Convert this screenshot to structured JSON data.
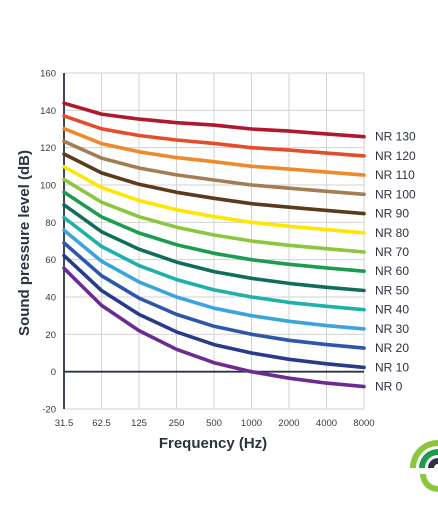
{
  "chart_data": {
    "type": "line",
    "title": "",
    "xlabel": "Frequency (Hz)",
    "ylabel": "Sound pressure level (dB)",
    "x": [
      "31.5",
      "62.5",
      "125",
      "250",
      "500",
      "1000",
      "2000",
      "4000",
      "8000"
    ],
    "yticks": [
      "160",
      "140",
      "120",
      "100",
      "80",
      "60",
      "40",
      "20",
      "0",
      "-20"
    ],
    "ylim": [
      -20,
      160
    ],
    "grid": true,
    "legend": "right-end labels",
    "series": [
      {
        "name": "NR 0",
        "color": "#6a2c91",
        "values": [
          55.4,
          35.5,
          22.0,
          12.0,
          4.8,
          0.0,
          -3.5,
          -6.1,
          -8.0
        ]
      },
      {
        "name": "NR 10",
        "color": "#283a8c",
        "values": [
          62.2,
          43.5,
          30.7,
          21.3,
          14.5,
          10.0,
          6.6,
          4.2,
          2.3
        ]
      },
      {
        "name": "NR 20",
        "color": "#2f56a8",
        "values": [
          69.0,
          51.4,
          39.4,
          30.7,
          24.3,
          20.0,
          16.8,
          14.5,
          12.6
        ]
      },
      {
        "name": "NR 30",
        "color": "#3ba4dc",
        "values": [
          75.8,
          59.2,
          48.1,
          40.0,
          34.0,
          30.0,
          27.0,
          24.7,
          22.9
        ]
      },
      {
        "name": "NR 40",
        "color": "#1eb0aa",
        "values": [
          82.6,
          67.1,
          56.8,
          49.3,
          43.8,
          40.0,
          37.1,
          35.0,
          33.2
        ]
      },
      {
        "name": "NR 50",
        "color": "#0f6e5a",
        "values": [
          89.4,
          75.0,
          65.6,
          58.7,
          53.6,
          50.0,
          47.3,
          45.2,
          43.5
        ]
      },
      {
        "name": "NR 60",
        "color": "#1d9b4f",
        "values": [
          96.2,
          82.9,
          74.3,
          68.0,
          63.4,
          60.0,
          57.5,
          55.6,
          53.8
        ]
      },
      {
        "name": "NR 70",
        "color": "#8cc63e",
        "values": [
          103.0,
          90.8,
          83.0,
          77.4,
          73.2,
          70.0,
          67.7,
          65.9,
          64.1
        ]
      },
      {
        "name": "NR 80",
        "color": "#ffe600",
        "values": [
          109.8,
          98.6,
          91.7,
          86.7,
          83.0,
          80.0,
          77.9,
          76.1,
          74.4
        ]
      },
      {
        "name": "NR 90",
        "color": "#5c3a1c",
        "values": [
          116.6,
          106.5,
          100.4,
          96.1,
          92.9,
          90.0,
          88.1,
          86.4,
          84.7
        ]
      },
      {
        "name": "NR 100",
        "color": "#a47d54",
        "values": [
          123.4,
          114.4,
          109.1,
          105.4,
          102.7,
          100.0,
          98.3,
          96.6,
          95.0
        ]
      },
      {
        "name": "NR 110",
        "color": "#f0892a",
        "values": [
          130.2,
          122.2,
          117.8,
          114.7,
          112.5,
          110.0,
          108.5,
          106.9,
          105.3
        ]
      },
      {
        "name": "NR 120",
        "color": "#e44d2b",
        "values": [
          137.0,
          130.1,
          126.5,
          124.1,
          122.3,
          120.0,
          118.7,
          117.1,
          115.6
        ]
      },
      {
        "name": "NR 130",
        "color": "#b0182e",
        "values": [
          143.8,
          138.0,
          135.3,
          133.4,
          132.1,
          130.0,
          128.9,
          127.4,
          125.9
        ]
      }
    ]
  },
  "logo": {
    "colors": [
      "#8cc63e",
      "#1d9b4f",
      "#ffffff",
      "#2b3240"
    ]
  }
}
